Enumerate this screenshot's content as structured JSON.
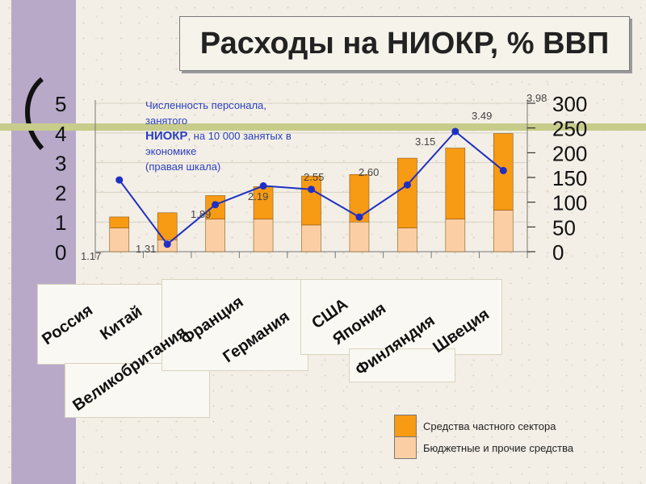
{
  "title": "Расходы на НИОКР, % ВВП",
  "colors": {
    "private": "#f79a14",
    "budget": "#fbcfa3",
    "line": "#1f2fc2",
    "annotation_text": "#2a3ec0",
    "bar_stroke": "#8a5a1a"
  },
  "chart_data": {
    "type": "bar",
    "categories": [
      "Россия",
      "Китай",
      "Великобритания",
      "Франция",
      "Германия",
      "США",
      "Япония",
      "Финляндия",
      "Швеция"
    ],
    "series": [
      {
        "name": "Бюджетные и прочие средства",
        "values": [
          0.8,
          0.4,
          1.1,
          1.1,
          0.9,
          1.0,
          0.8,
          1.1,
          1.4
        ]
      },
      {
        "name": "Средства частного сектора",
        "values": [
          0.37,
          0.91,
          0.79,
          1.09,
          1.65,
          1.6,
          2.35,
          2.39,
          2.58
        ]
      }
    ],
    "totals": [
      1.17,
      1.31,
      1.89,
      2.19,
      2.55,
      2.6,
      3.15,
      3.49,
      3.98
    ],
    "total_labels": [
      "1.17",
      "1.31",
      "1.89",
      "2.19",
      "2.55",
      "2.60",
      "3.15",
      "3.49",
      "3.98"
    ],
    "left_ticks": [
      "0",
      "1",
      "2",
      "3",
      "4",
      "5"
    ],
    "ylim": [
      0,
      5
    ],
    "right_axis": {
      "ylim": [
        0,
        300
      ],
      "ticks": [
        "0",
        "50",
        "100",
        "150",
        "200",
        "250",
        "300"
      ]
    },
    "line_series": {
      "name": "Численность персонала, занятого НИОКР, на 10 000 занятых в экономике (правая шкала)",
      "values": [
        145,
        15,
        95,
        133,
        126,
        70,
        135,
        243,
        164
      ]
    },
    "annotation": {
      "line1": "Численность персонала,",
      "line2": "занятого",
      "line3_bold": "НИОКР",
      "line3_rest": ", на 10 000 занятых в",
      "line4": "экономике",
      "line5": "(правая шкала)"
    }
  }
}
